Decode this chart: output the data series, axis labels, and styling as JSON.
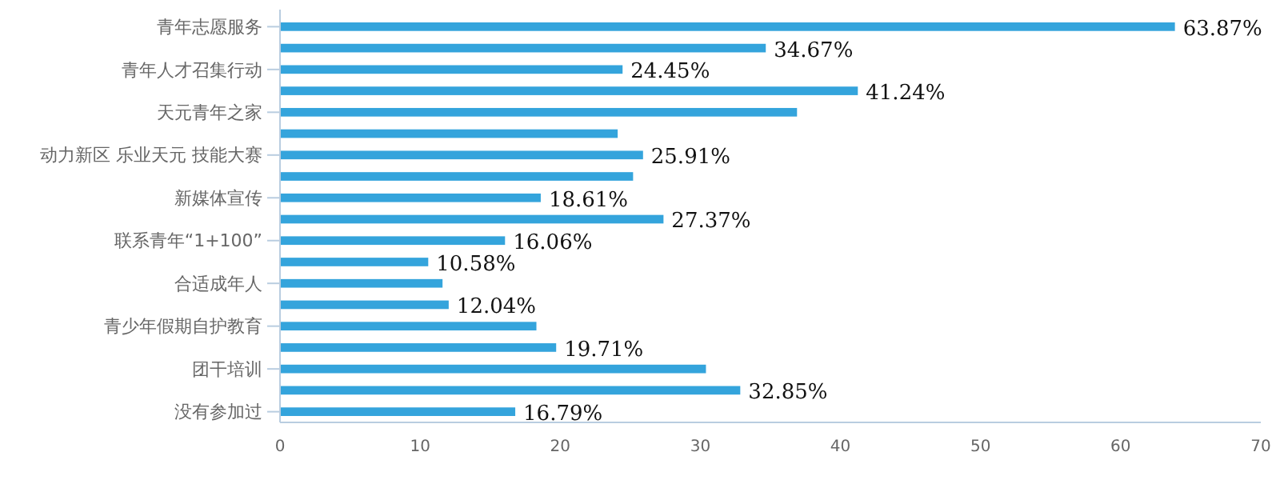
{
  "chart_data": {
    "type": "bar",
    "orientation": "horizontal",
    "categories": [
      "青年志愿服务",
      null,
      "青年人才召集行动",
      null,
      "天元青年之家",
      null,
      "动力新区 乐业天元 技能大赛",
      null,
      "新媒体宣传",
      null,
      "联系青年“1+100”",
      null,
      "合适成年人",
      null,
      "青少年假期自护教育",
      null,
      "团干培训",
      null,
      "没有参加过"
    ],
    "values": [
      63.87,
      34.67,
      24.45,
      41.24,
      36.9,
      24.1,
      25.91,
      25.2,
      18.61,
      27.37,
      16.06,
      10.58,
      11.6,
      12.04,
      18.3,
      19.71,
      30.4,
      32.85,
      16.79
    ],
    "value_labels": [
      "63.87%",
      "34.67%",
      "24.45%",
      "41.24%",
      null,
      null,
      "25.91%",
      null,
      "18.61%",
      "27.37%",
      "16.06%",
      "10.58%",
      null,
      "12.04%",
      null,
      "19.71%",
      null,
      "32.85%",
      "16.79%"
    ],
    "color": "#34a4dc",
    "xlim": [
      0,
      70
    ],
    "xticks": [
      0,
      10,
      20,
      30,
      40,
      50,
      60,
      70
    ],
    "grid": false
  }
}
